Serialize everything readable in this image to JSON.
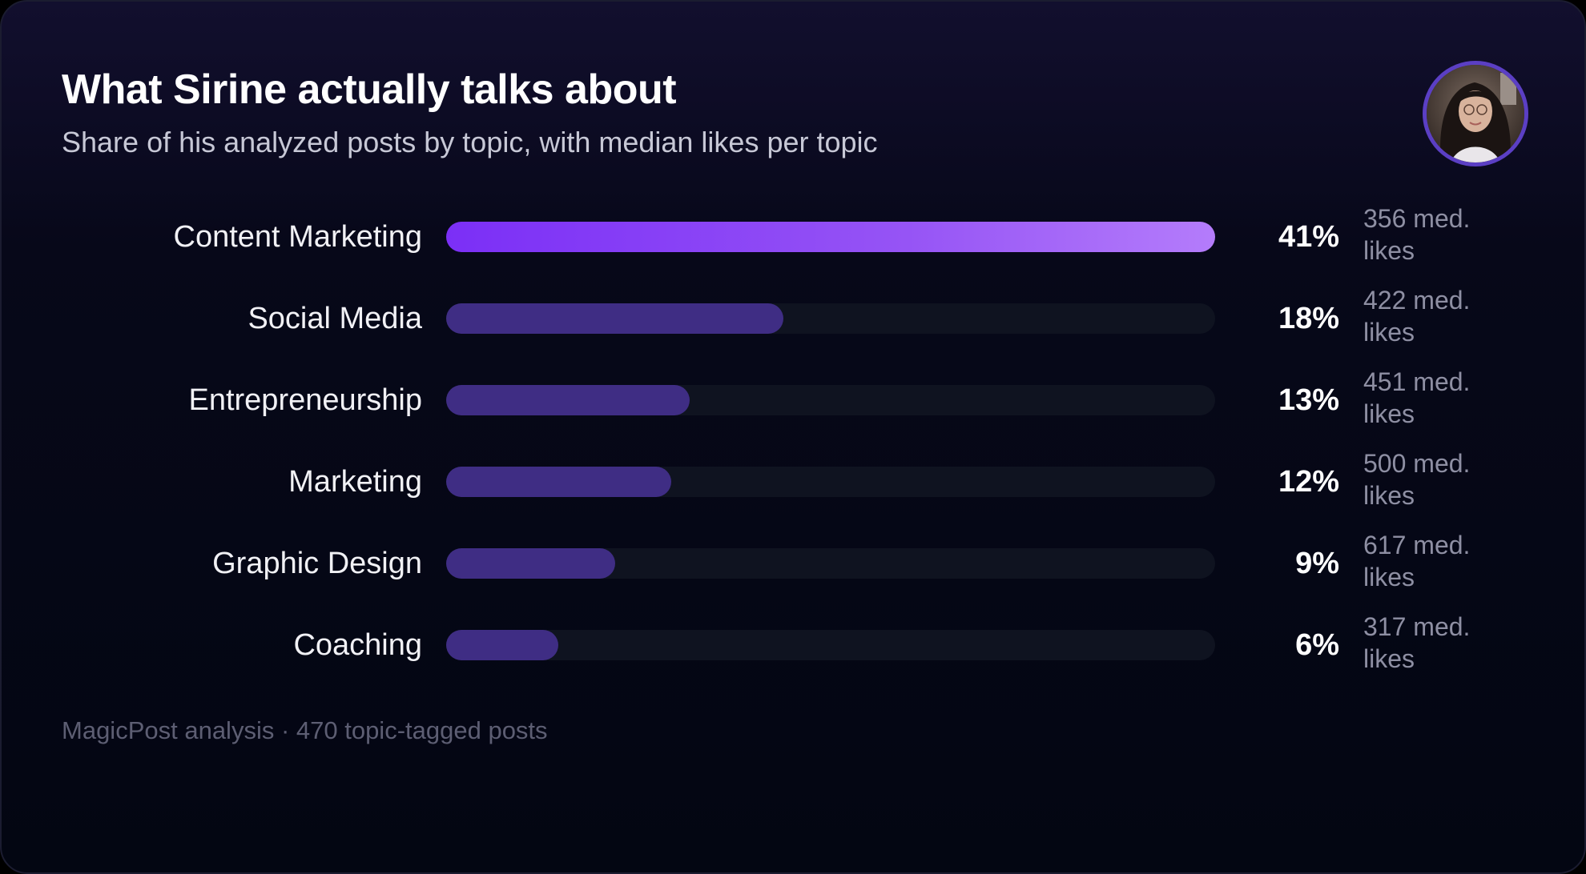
{
  "header": {
    "title": "What Sirine actually talks about",
    "subtitle": "Share of his analyzed posts by topic, with median likes per topic"
  },
  "avatar_icon": "profile-photo",
  "colors": {
    "top_bar_start": "#7b2ff6",
    "top_bar_end": "#b47cfb",
    "bar": "#3f2d84",
    "track": "#0f1320"
  },
  "chart_data": {
    "type": "bar",
    "orientation": "horizontal",
    "title": "What Sirine actually talks about",
    "subtitle": "Share of his analyzed posts by topic, with median likes per topic",
    "categories": [
      "Content Marketing",
      "Social Media",
      "Entrepreneurship",
      "Marketing",
      "Graphic Design",
      "Coaching"
    ],
    "values": [
      41,
      18,
      13,
      12,
      9,
      6
    ],
    "value_labels": [
      "41%",
      "18%",
      "13%",
      "12%",
      "9%",
      "6%"
    ],
    "median_likes": [
      356,
      422,
      451,
      500,
      617,
      317
    ],
    "median_likes_labels": [
      "356 med. likes",
      "422 med. likes",
      "451 med. likes",
      "500 med. likes",
      "617 med. likes",
      "317 med. likes"
    ],
    "unit": "%",
    "xlim": [
      0,
      41
    ],
    "grid": false,
    "legend": "none"
  },
  "footer": {
    "source": "MagicPost analysis · 470 topic-tagged posts"
  }
}
